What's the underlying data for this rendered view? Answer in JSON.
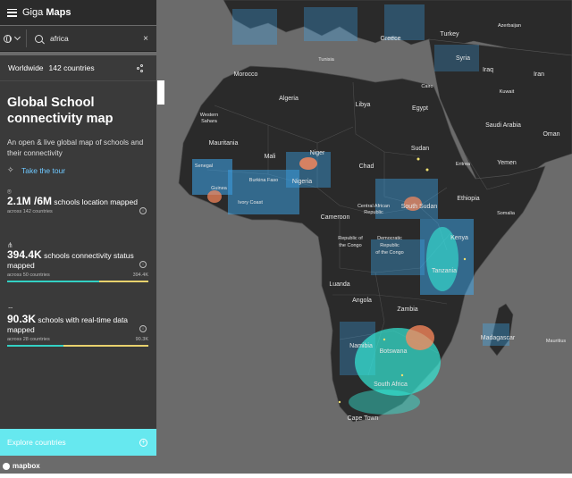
{
  "app": {
    "brand_light": "Giga",
    "brand_bold": "Maps"
  },
  "search": {
    "value": "africa",
    "clear_label": "×"
  },
  "scope": {
    "label": "Worldwide",
    "count": "142 countries"
  },
  "panel": {
    "title": "Global School connectivity map",
    "description": "An open & live global map of schools and their connectivity",
    "tour_label": "Take the tour",
    "stats": [
      {
        "value": "2.1M /6M",
        "label": "schools location mapped",
        "sub": "across 142 countries"
      },
      {
        "value": "394.4K",
        "label": "schools connectivity status mapped",
        "sub": "across 50 countries",
        "max": "394.4K",
        "progress": 0.65
      },
      {
        "value": "90.3K",
        "label": "schools with real-time data mapped",
        "sub": "across 28 countries",
        "max": "90.3K",
        "progress": 0.4
      }
    ],
    "explore_label": "Explore countries"
  },
  "attribution": "mapbox",
  "map_labels": [
    "Greece",
    "Turkey",
    "Azerbaijan",
    "Syria",
    "Iraq",
    "Iran",
    "Kuwait",
    "Tunisia",
    "Morocco",
    "Algeria",
    "Libya",
    "Egypt",
    "Cairo",
    "Saudi Arabia",
    "Oman",
    "Western Sahara",
    "Mauritania",
    "Mali",
    "Niger",
    "Chad",
    "Sudan",
    "Eritrea",
    "Yemen",
    "Senegal",
    "Guinea",
    "Burkina Faso",
    "Ivory Coast",
    "Nigeria",
    "Ethiopia",
    "Somalia",
    "South Sudan",
    "Central African Republic",
    "Cameroon",
    "Republic of the Congo",
    "Democratic Republic of the Congo",
    "Kenya",
    "Tanzania",
    "Luanda",
    "Angola",
    "Zambia",
    "Madagascar",
    "Mauritius",
    "Namibia",
    "Botswana",
    "South Africa",
    "Cape Town"
  ],
  "colors": {
    "panel": "#3a3a3a",
    "topbar": "#2b2b2b",
    "accent": "#66e8ef",
    "link": "#6ec8ff",
    "bar_fill": "#33d1c4",
    "bar_track": "#e8d16d",
    "land": "#2a2a2a",
    "water": "#6b6b6b"
  }
}
